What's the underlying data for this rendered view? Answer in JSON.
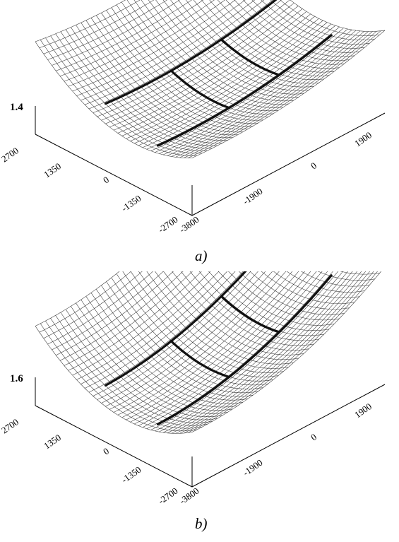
{
  "figure": {
    "panels": [
      {
        "id": "a",
        "caption": "a)",
        "z_label": "1.4",
        "left_axis_ticks": [
          "2700",
          "1350",
          "0",
          "-1350",
          "-2700"
        ],
        "bottom_axis_ticks": [
          "-3800",
          "-1900",
          "0",
          "1900"
        ]
      },
      {
        "id": "b",
        "caption": "b)",
        "z_label": "1.6",
        "left_axis_ticks": [
          "2700",
          "1350",
          "0",
          "-1350",
          "-2700"
        ],
        "bottom_axis_ticks": [
          "-3800",
          "-1900",
          "0",
          "1900"
        ]
      }
    ]
  },
  "colors": {
    "mesh": "#333333",
    "bold_curves": "#111111",
    "background": "#ffffff"
  }
}
